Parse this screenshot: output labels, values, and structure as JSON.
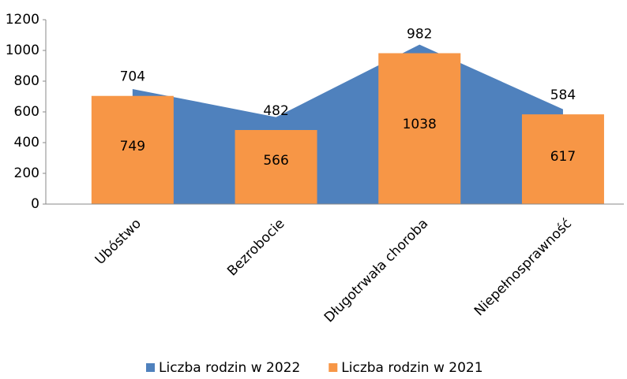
{
  "chart_data": {
    "type": "bar_area",
    "categories": [
      "Ubóstwo",
      "Bezrobocie",
      "Długotrwała choroba",
      "Niepełnosprawność"
    ],
    "series": [
      {
        "name": "Liczba rodzin w 2022",
        "color": "#4f81bd",
        "type": "area",
        "values": [
          749,
          566,
          1038,
          617
        ]
      },
      {
        "name": "Liczba rodzin w 2021",
        "color": "#f79646",
        "type": "bar",
        "values": [
          704,
          482,
          982,
          584
        ]
      }
    ],
    "ylim": [
      0,
      1200
    ],
    "yticks": [
      0,
      200,
      400,
      600,
      800,
      1000,
      1200
    ],
    "legend": "bottom"
  }
}
